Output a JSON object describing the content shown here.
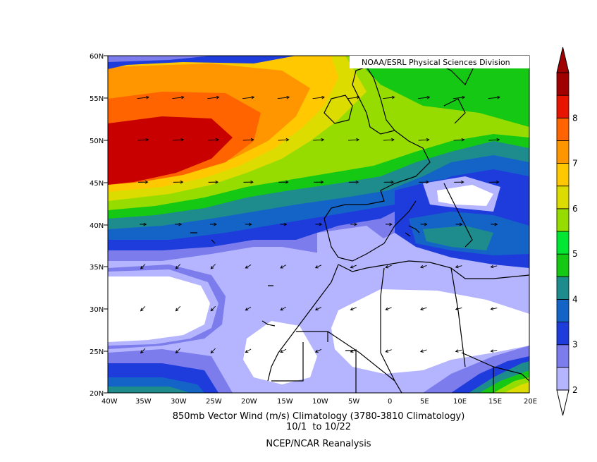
{
  "credit": "NOAA/ESRL Physical Sciences Division",
  "caption": {
    "line1": "850mb Vector Wind (m/s) Climatology (3780-3810 Climatology)",
    "line2": "10/1  to 10/22",
    "line3": "NCEP/NCAR Reanalysis"
  },
  "lat_labels": [
    "60N",
    "55N",
    "50N",
    "45N",
    "40N",
    "35N",
    "30N",
    "25N",
    "20N"
  ],
  "lon_labels": [
    "40W",
    "35W",
    "30W",
    "25W",
    "20W",
    "15W",
    "10W",
    "5W",
    "0",
    "5E",
    "10E",
    "15E",
    "20E"
  ],
  "colorbar": {
    "labels": [
      "2",
      "3",
      "4",
      "5",
      "6",
      "7",
      "8"
    ],
    "colors": [
      "#b4b4ff",
      "#7c7cec",
      "#1e3cdc",
      "#1464c8",
      "#1e8c8c",
      "#14c814",
      "#00e632",
      "#96dc00",
      "#dcdc00",
      "#ffc800",
      "#ff9600",
      "#ff6400",
      "#e61400",
      "#a00000"
    ]
  },
  "palette": {
    "white": "#ffffff",
    "lavender_light": "#b4b4ff",
    "lavender": "#7c7cec",
    "blue_dark": "#1e3cdc",
    "blue_mid": "#1464c8",
    "teal": "#1e8c8c",
    "green": "#14c814",
    "green_light": "#96dc00",
    "yellow": "#dcdc00",
    "orange_light": "#ffc800",
    "orange": "#ff9600",
    "orange_dark": "#ff6400",
    "red": "#c80000"
  }
}
